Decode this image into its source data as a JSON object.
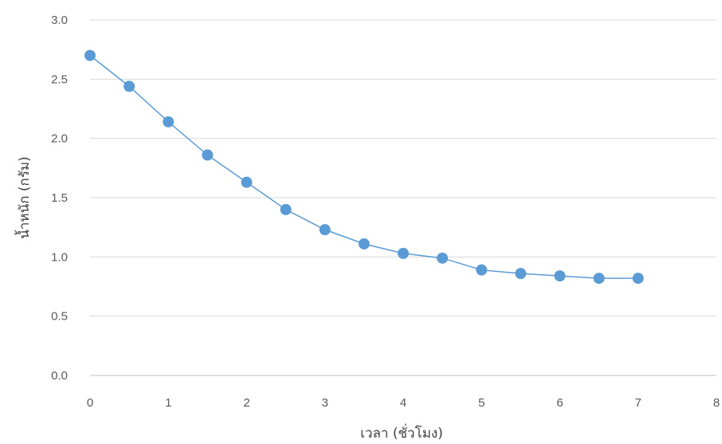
{
  "chart_data": {
    "type": "scatter",
    "title": "",
    "xlabel": "เวลา (ชั่วโมง)",
    "ylabel": "น้ำหนัก (กรัม)",
    "xlim": [
      0,
      8
    ],
    "ylim": [
      0,
      3
    ],
    "x_ticks": [
      "0",
      "1",
      "2",
      "3",
      "4",
      "5",
      "6",
      "7",
      "8"
    ],
    "y_ticks": [
      "0.0",
      "0.5",
      "1.0",
      "1.5",
      "2.0",
      "2.5",
      "3.0"
    ],
    "grid": "horizontal",
    "legend": "none",
    "series": [
      {
        "x": [
          0,
          0.5,
          1,
          1.5,
          2,
          2.5,
          3,
          3.5,
          4,
          4.5,
          5,
          5.5,
          6,
          6.5,
          7
        ],
        "values": [
          2.7,
          2.44,
          2.14,
          1.86,
          1.63,
          1.4,
          1.23,
          1.11,
          1.03,
          0.99,
          0.89,
          0.86,
          0.84,
          0.82,
          0.82
        ],
        "color": "#5b9bd5"
      }
    ]
  }
}
